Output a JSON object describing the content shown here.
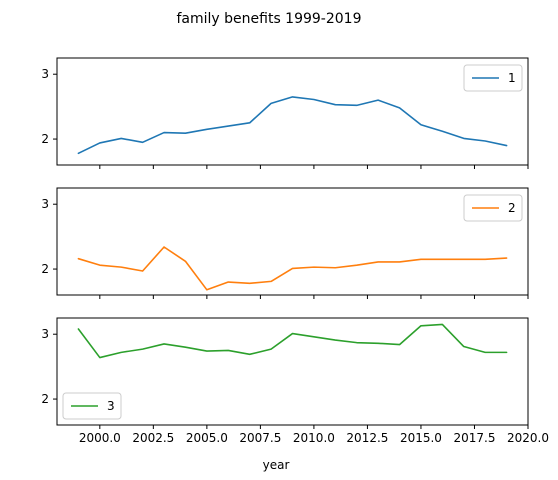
{
  "chart_data": {
    "type": "line",
    "title": "family benefits 1999-2019",
    "xlabel": "year",
    "xlim": [
      1998.0,
      2020.0
    ],
    "xticks": [
      2000.0,
      2002.5,
      2005.0,
      2007.5,
      2010.0,
      2012.5,
      2015.0,
      2017.5,
      2020.0
    ],
    "xtick_labels": [
      "2000.0",
      "2002.5",
      "2005.0",
      "2007.5",
      "2010.0",
      "2012.5",
      "2015.0",
      "2017.5",
      "2020.0"
    ],
    "ylim": [
      1.6,
      3.25
    ],
    "yticks": [
      2,
      3
    ],
    "ytick_labels": [
      "2",
      "3"
    ],
    "sharex": true,
    "grid": false,
    "x": [
      1999,
      2000,
      2001,
      2002,
      2003,
      2004,
      2005,
      2006,
      2007,
      2008,
      2009,
      2010,
      2011,
      2012,
      2013,
      2014,
      2015,
      2016,
      2017,
      2018,
      2019
    ],
    "series": [
      {
        "name": "1",
        "color": "#1f77b4",
        "legend_position": "upper-right",
        "values": [
          1.78,
          1.94,
          2.01,
          1.95,
          2.1,
          2.09,
          2.15,
          2.2,
          2.25,
          2.55,
          2.65,
          2.61,
          2.53,
          2.52,
          2.6,
          2.48,
          2.22,
          2.12,
          2.01,
          1.97,
          1.9
        ]
      },
      {
        "name": "2",
        "color": "#ff7f0e",
        "legend_position": "upper-right",
        "values": [
          2.16,
          2.06,
          2.03,
          1.97,
          2.34,
          2.12,
          1.68,
          1.8,
          1.78,
          1.81,
          2.01,
          2.03,
          2.02,
          2.06,
          2.11,
          2.11,
          2.15,
          2.15,
          2.15,
          2.15,
          2.17
        ]
      },
      {
        "name": "3",
        "color": "#2ca02c",
        "legend_position": "lower-left",
        "values": [
          3.08,
          2.64,
          2.72,
          2.77,
          2.85,
          2.8,
          2.74,
          2.75,
          2.69,
          2.77,
          3.01,
          2.96,
          2.91,
          2.87,
          2.86,
          2.84,
          3.13,
          3.15,
          2.81,
          2.72,
          2.72
        ]
      }
    ]
  }
}
